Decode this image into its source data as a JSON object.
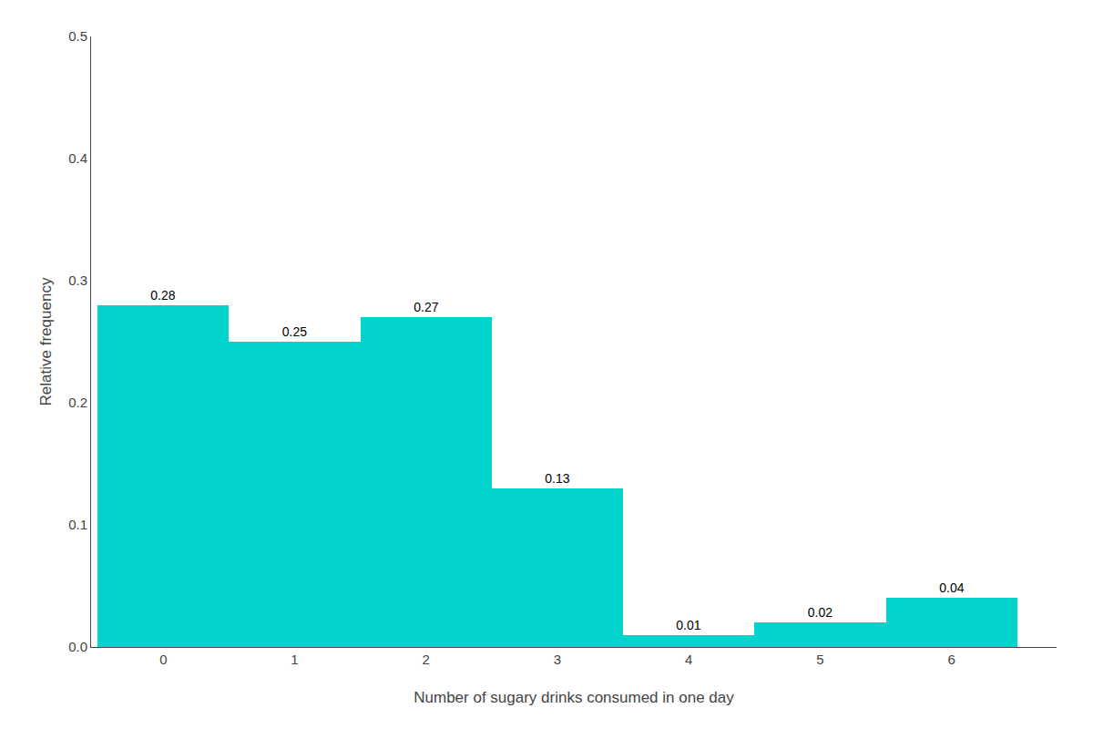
{
  "chart_data": {
    "type": "bar",
    "xlabel": "Number of sugary drinks consumed in one day",
    "ylabel": "Relative frequency",
    "x": [
      0,
      1,
      2,
      3,
      4,
      5,
      6
    ],
    "values": [
      0.28,
      0.25,
      0.27,
      0.13,
      0.01,
      0.02,
      0.04
    ],
    "color": "#00D4CC",
    "xlim": [
      -0.55,
      6.8
    ],
    "xticks": [
      0,
      1,
      2,
      3,
      4,
      5,
      6
    ],
    "ylim": [
      0,
      0.5
    ],
    "yticks": [
      {
        "value": 0,
        "label": "0.0"
      },
      0.1,
      0.2,
      0.3,
      0.4,
      0.5
    ],
    "grid": false,
    "data_labels": true
  }
}
